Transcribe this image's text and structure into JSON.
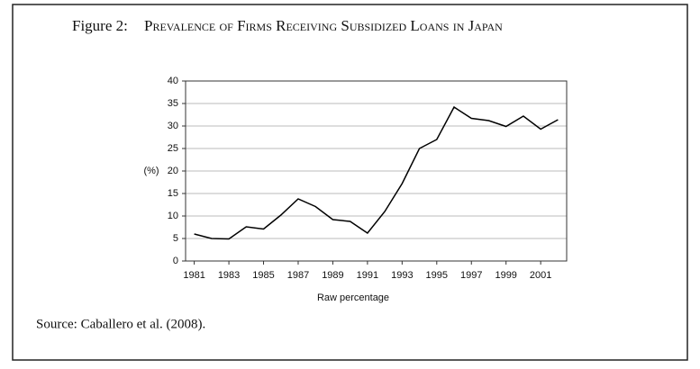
{
  "chart_data": {
    "type": "line",
    "figure_label": "Figure 2:",
    "title": "Prevalence of Firms Receiving Subsidized Loans in Japan",
    "x_label": "Raw percentage",
    "y_label": "(%)",
    "source": "Source: Caballero et al. (2008).",
    "x": [
      1981,
      1982,
      1983,
      1984,
      1985,
      1986,
      1987,
      1988,
      1989,
      1990,
      1991,
      1992,
      1993,
      1994,
      1995,
      1996,
      1997,
      1998,
      1999,
      2000,
      2001,
      2002
    ],
    "values": [
      6.0,
      5.0,
      4.9,
      7.6,
      7.1,
      10.2,
      13.8,
      12.1,
      9.2,
      8.8,
      6.2,
      11.0,
      17.2,
      25.0,
      27.0,
      34.2,
      31.7,
      31.2,
      29.9,
      32.2,
      29.3,
      31.4
    ],
    "color": "#000000",
    "xlim": [
      1980.5,
      2002.5
    ],
    "xticks": [
      1981,
      1983,
      1985,
      1987,
      1989,
      1991,
      1993,
      1995,
      1997,
      1999,
      2001
    ],
    "ylim": [
      0,
      40
    ],
    "yticks": [
      0,
      5,
      10,
      15,
      20,
      25,
      30,
      35,
      40
    ],
    "grid": true
  }
}
